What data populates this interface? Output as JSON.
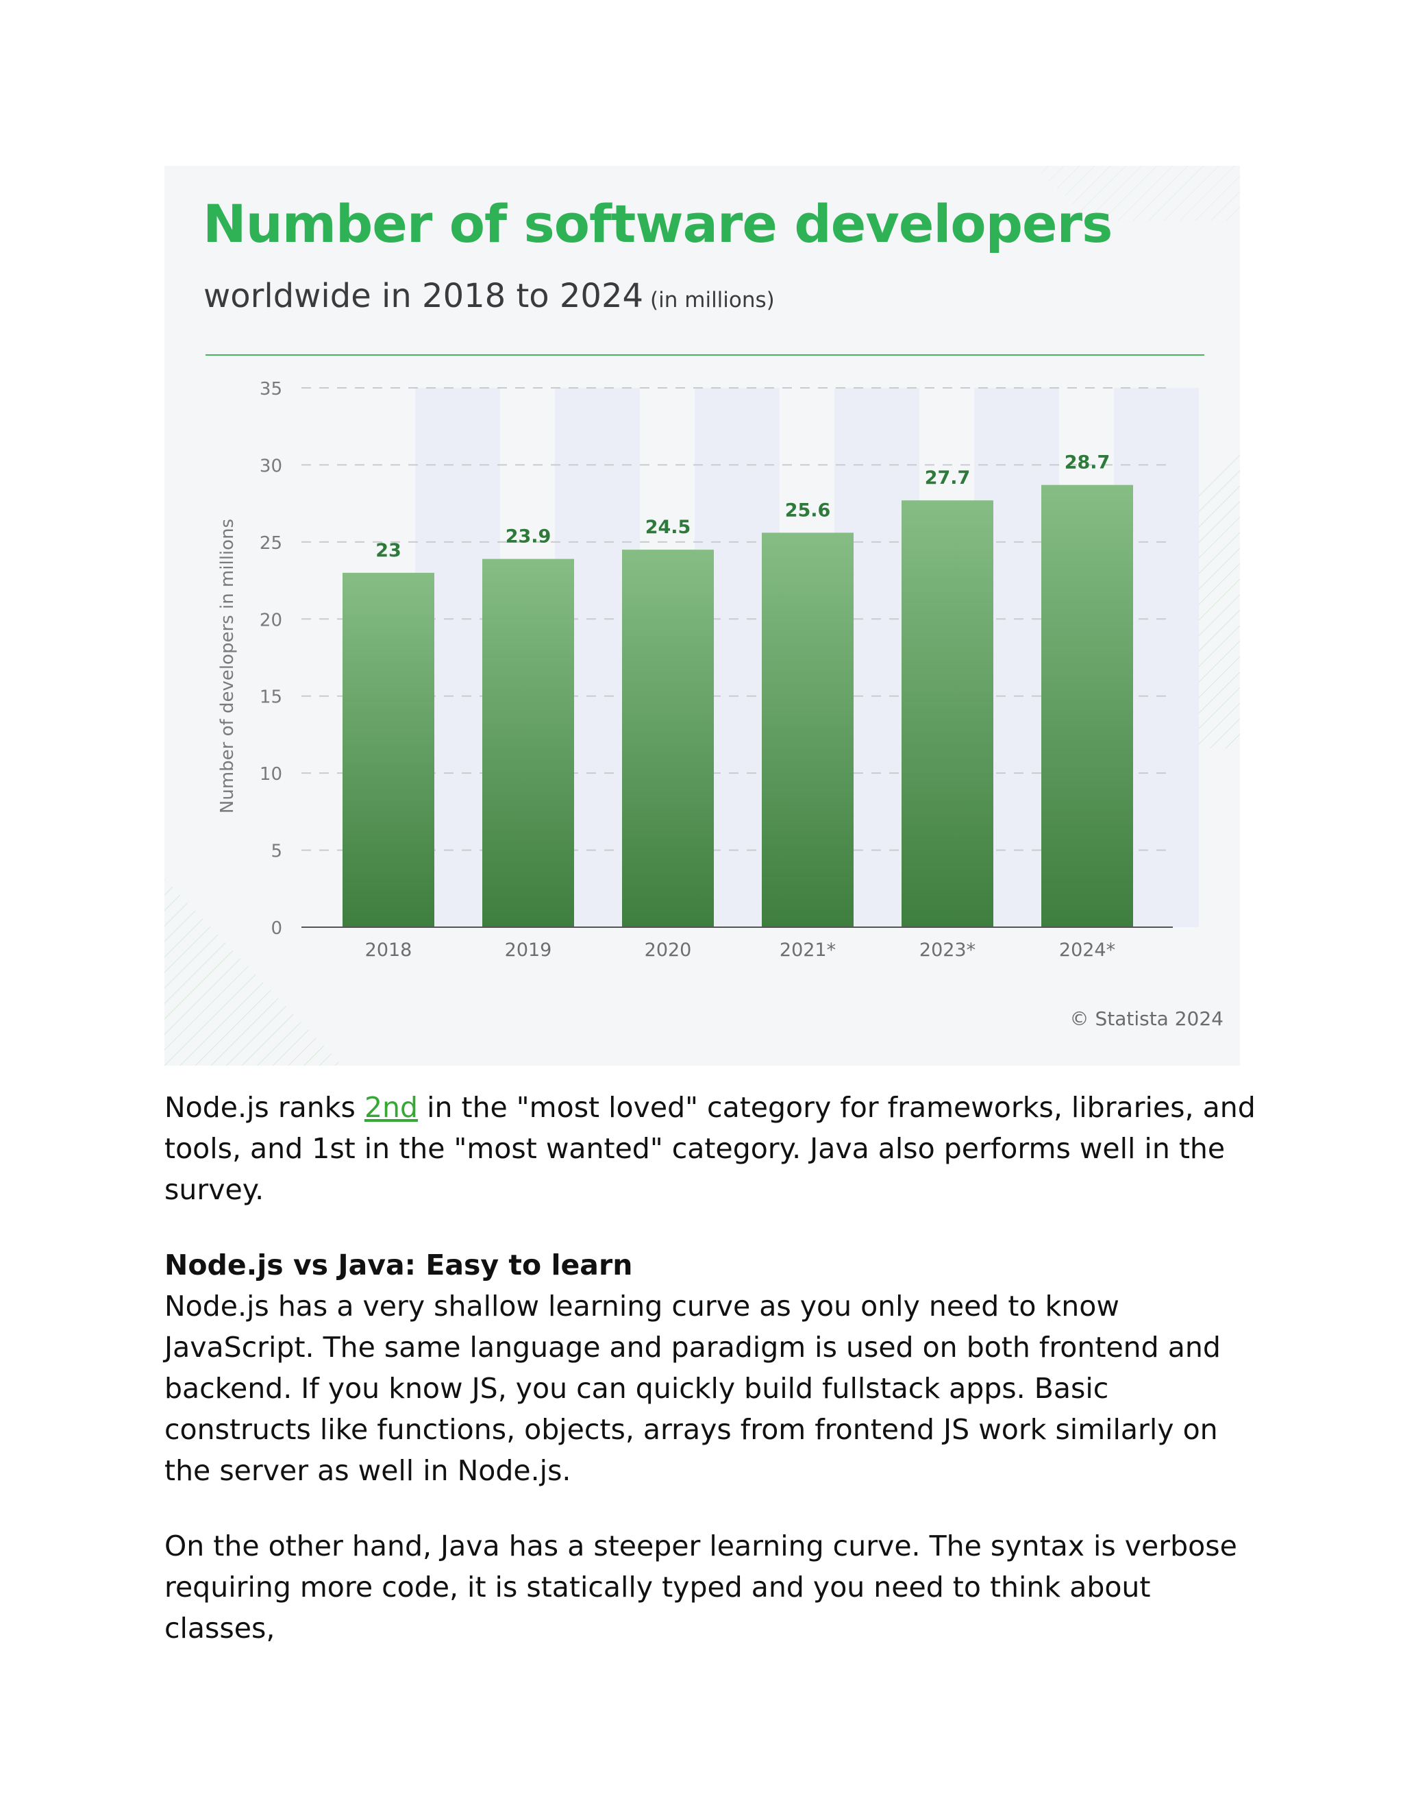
{
  "chart": {
    "title": "Number of software developers",
    "subtitle": "worldwide in 2018 to 2024",
    "unit_note": "(in millions)",
    "source": "© Statista 2024",
    "accent_color": "#2fb256",
    "bar_color_top": "#86bd85",
    "bar_color_bottom": "#3e7e3e"
  },
  "chart_data": {
    "type": "bar",
    "categories": [
      "2018",
      "2019",
      "2020",
      "2021*",
      "2023*",
      "2024*"
    ],
    "values": [
      23,
      23.9,
      24.5,
      25.6,
      27.7,
      28.7
    ],
    "data_labels": [
      "23",
      "23.9",
      "24.5",
      "25.6",
      "27.7",
      "28.7"
    ],
    "title": "Number of software developers",
    "subtitle": "worldwide in 2018 to 2024 (in millions)",
    "xlabel": "",
    "ylabel": "Number of developers in millions",
    "ylim": [
      0,
      35
    ],
    "yticks": [
      0,
      5,
      10,
      15,
      20,
      25,
      30,
      35
    ],
    "grid": true,
    "legend": "none"
  },
  "article": {
    "para1_before": "Node.js ranks ",
    "para1_link": "2nd",
    "para1_after": " in the \"most loved\" category for frameworks, libraries, and tools, and 1st in the \"most wanted\" category. Java also performs well in the survey.",
    "heading": "Node.js vs Java: Easy to learn",
    "para2": "Node.js has a very shallow learning curve as you only need to know JavaScript. The same language and paradigm is used on both frontend and backend. If you know JS, you can quickly build fullstack apps. Basic constructs like functions, objects, arrays from frontend JS work similarly on the server as well in Node.js.",
    "para3": "On the other hand, Java has a steeper learning curve. The syntax is verbose requiring more code, it is statically typed and you need to think about classes,"
  }
}
